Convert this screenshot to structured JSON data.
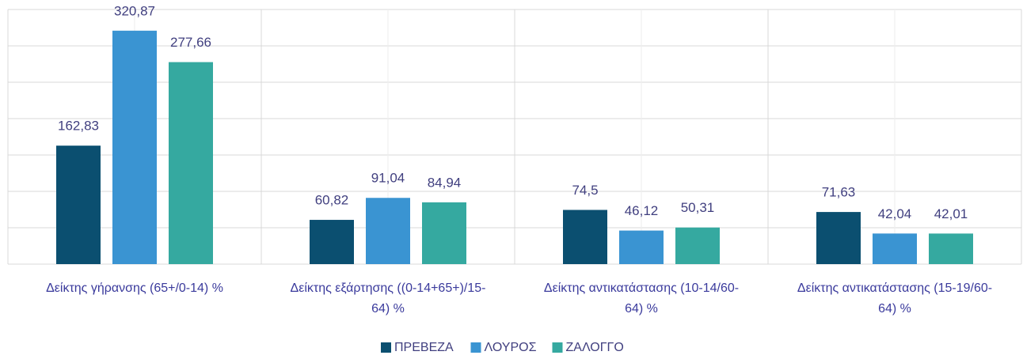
{
  "chart_data": {
    "type": "bar",
    "categories": [
      "Δείκτης γήρανσης (65+/0-14) %",
      "Δείκτης εξάρτησης ((0-14+65+)/15-64) %",
      "Δείκτης αντικατάστασης (10-14/60-64) %",
      "Δείκτης αντικατάστασης (15-19/60-64) %"
    ],
    "series": [
      {
        "name": "ΠΡΕΒΕΖΑ",
        "color": "#0b4f70",
        "values": [
          162.83,
          60.82,
          74.5,
          71.63
        ],
        "value_labels": [
          "162,83",
          "60,82",
          "74,5",
          "71,63"
        ]
      },
      {
        "name": "ΛΟΥΡΟΣ",
        "color": "#3a94d2",
        "values": [
          320.87,
          91.04,
          46.12,
          42.04
        ],
        "value_labels": [
          "320,87",
          "91,04",
          "46,12",
          "42,04"
        ]
      },
      {
        "name": "ΖΑΛΟΓΓΟ",
        "color": "#35a9a0",
        "values": [
          277.66,
          84.94,
          50.31,
          42.01
        ],
        "value_labels": [
          "277,66",
          "84,94",
          "50,31",
          "42,01"
        ]
      }
    ],
    "ylim": [
      0,
      350
    ],
    "yticks": [
      0,
      50,
      100,
      150,
      200,
      250,
      300,
      350
    ],
    "grid": true,
    "legend": "bottom"
  }
}
